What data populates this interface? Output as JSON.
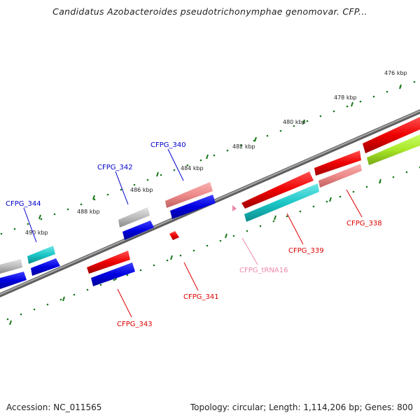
{
  "title": "Candidatus Azobacteroides pseudotrichonymphae genomovar. CFP...",
  "footer": {
    "accession": "Accession: NC_011565",
    "summary": "Topology: circular; Length: 1,114,206 bp; Genes: 800"
  },
  "colors": {
    "backbone": "#7a7a7a",
    "tick_dots": "#1a7a1a",
    "forward_label": "#0000cc",
    "reverse_label": "#dd0000",
    "trna_label": "#ee88aa"
  },
  "ticks": [
    "476 kbp",
    "478 kbp",
    "480 kbp",
    "482 kbp",
    "484 kbp",
    "486 kbp",
    "488 kbp",
    "490 kbp"
  ],
  "genes": [
    {
      "label": "CFPG_338",
      "strand": "reverse"
    },
    {
      "label": "CFPG_339",
      "strand": "reverse"
    },
    {
      "label": "CFPG_340",
      "strand": "forward"
    },
    {
      "label": "CFPG_341",
      "strand": "reverse"
    },
    {
      "label": "CFPG_342",
      "strand": "forward"
    },
    {
      "label": "CFPG_343",
      "strand": "reverse"
    },
    {
      "label": "CFPG_344",
      "strand": "forward"
    },
    {
      "label": "CFPG_tRNA16",
      "strand": "reverse"
    }
  ]
}
